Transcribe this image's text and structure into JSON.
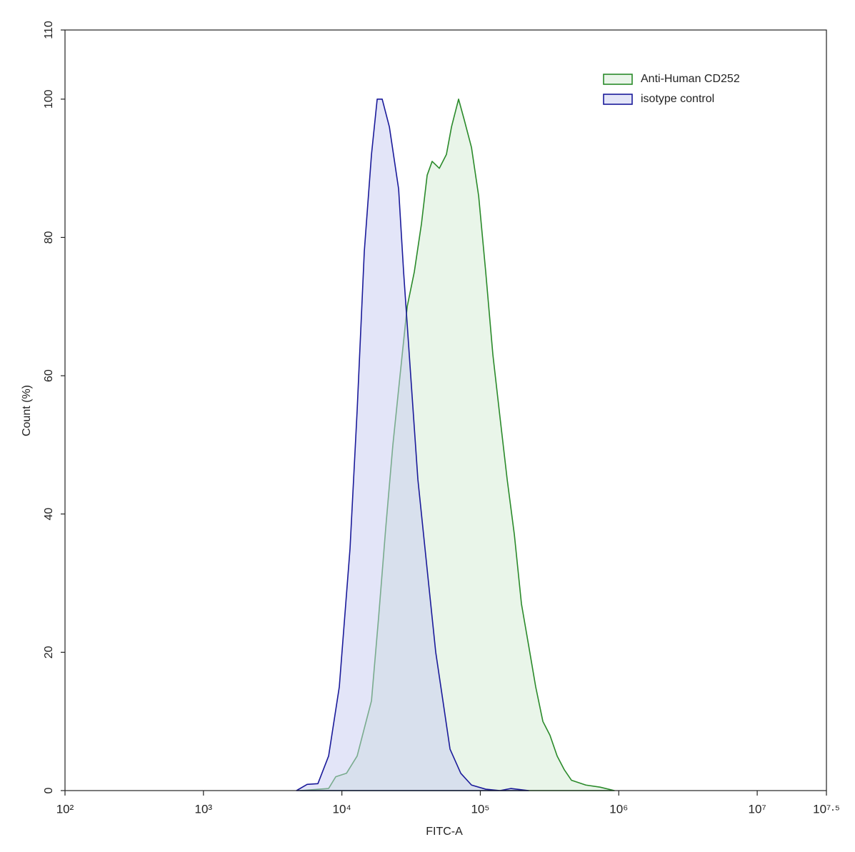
{
  "chart_data": {
    "type": "area",
    "x_label": "FITC-A",
    "y_label": "Count (%)",
    "log_x": true,
    "xlim": [
      100,
      31622776.6
    ],
    "xticks": [
      {
        "value": 100,
        "label": "10²"
      },
      {
        "value": 1000,
        "label": "10³"
      },
      {
        "value": 10000,
        "label": "10⁴"
      },
      {
        "value": 100000,
        "label": "10⁵"
      },
      {
        "value": 1000000,
        "label": "10⁶"
      },
      {
        "value": 10000000,
        "label": "10⁷"
      },
      {
        "value": 31622776.6,
        "label": "10⁷·⁵"
      }
    ],
    "ylim": [
      0,
      110
    ],
    "yticks": [
      0,
      20,
      40,
      60,
      80,
      100,
      110
    ],
    "legend_position": "upper right",
    "series": [
      {
        "name": "Anti-Human CD252",
        "color": "#2a8a2a",
        "fill": "#d4ecd4",
        "x": [
          4990,
          8020,
          9030,
          10790,
          12890,
          14520,
          16360,
          18410,
          20740,
          23350,
          26300,
          29630,
          33340,
          37580,
          41300,
          44870,
          50580,
          56890,
          61940,
          69660,
          76560,
          86360,
          97270,
          109400,
          123300,
          138700,
          156300,
          176200,
          198200,
          223300,
          251200,
          283100,
          318400,
          358900,
          404600,
          455000,
          578000,
          732800,
          929000
        ],
        "values": [
          0,
          0.3,
          2,
          2.5,
          5,
          9,
          13,
          25,
          38,
          50,
          60,
          70,
          75,
          82,
          89,
          91,
          90,
          92,
          96,
          100,
          97,
          93,
          86,
          75,
          63,
          54,
          45,
          37,
          27,
          21,
          15,
          10,
          8,
          5,
          3,
          1.5,
          0.8,
          0.5,
          0
        ]
      },
      {
        "name": "isotype control",
        "color": "#1a1a9a",
        "fill": "#c8ccf2",
        "x": [
          4700,
          5610,
          6710,
          8020,
          9580,
          11450,
          12890,
          14520,
          16360,
          17990,
          19550,
          22030,
          25700,
          27920,
          31420,
          35400,
          42290,
          47640,
          53670,
          60420,
          72270,
          86360,
          109400,
          138700,
          165900,
          223300
        ],
        "values": [
          0,
          0.9,
          1,
          5,
          15,
          35,
          55,
          78,
          92,
          100,
          100,
          96,
          87,
          75,
          60,
          45,
          30,
          20,
          13,
          6,
          2.5,
          0.8,
          0.2,
          0,
          0.3,
          0
        ]
      }
    ]
  }
}
